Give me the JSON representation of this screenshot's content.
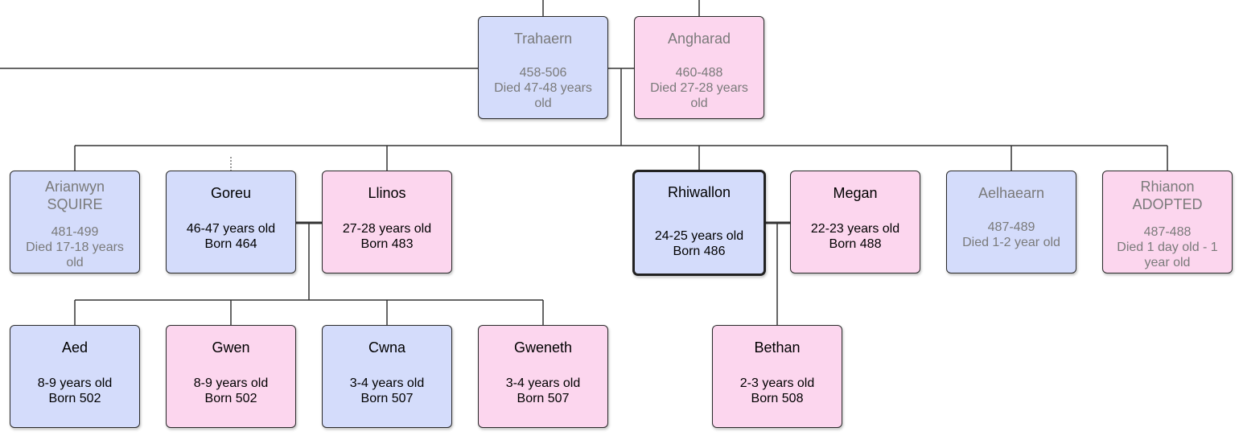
{
  "people": {
    "trahaern": {
      "name": "Trahaern",
      "line1": "458-506",
      "line2": "Died 47-48 years old"
    },
    "angharad": {
      "name": "Angharad",
      "line1": "460-488",
      "line2": "Died 27-28 years old"
    },
    "arianwyn": {
      "name": "Arianwyn",
      "tag": "SQUIRE",
      "line1": "481-499",
      "line2": "Died 17-18 years old"
    },
    "goreu": {
      "name": "Goreu",
      "line1": "46-47 years old",
      "line2": "Born 464"
    },
    "llinos": {
      "name": "Llinos",
      "line1": "27-28 years old",
      "line2": "Born 483"
    },
    "rhiwallon": {
      "name": "Rhiwallon",
      "line1": "24-25 years old",
      "line2": "Born 486"
    },
    "megan": {
      "name": "Megan",
      "line1": "22-23 years old",
      "line2": "Born 488"
    },
    "aelhaearn": {
      "name": "Aelhaearn",
      "line1": "487-489",
      "line2": "Died 1-2 year old"
    },
    "rhianon": {
      "name": "Rhianon",
      "tag": "ADOPTED",
      "line1": "487-488",
      "line2": "Died 1 day old - 1 year old"
    },
    "aed": {
      "name": "Aed",
      "line1": "8-9 years old",
      "line2": "Born 502"
    },
    "gwen": {
      "name": "Gwen",
      "line1": "8-9 years old",
      "line2": "Born 502"
    },
    "cwna": {
      "name": "Cwna",
      "line1": "3-4 years old",
      "line2": "Born 507"
    },
    "gweneth": {
      "name": "Gweneth",
      "line1": "3-4 years old",
      "line2": "Born 507"
    },
    "bethan": {
      "name": "Bethan",
      "line1": "2-3 years old",
      "line2": "Born 508"
    }
  },
  "colors": {
    "male": "#d4dcfb",
    "female": "#fcd6ee",
    "deceased_text": "#7a7a7a",
    "line": "#333333"
  },
  "selected_person": "rhiwallon"
}
